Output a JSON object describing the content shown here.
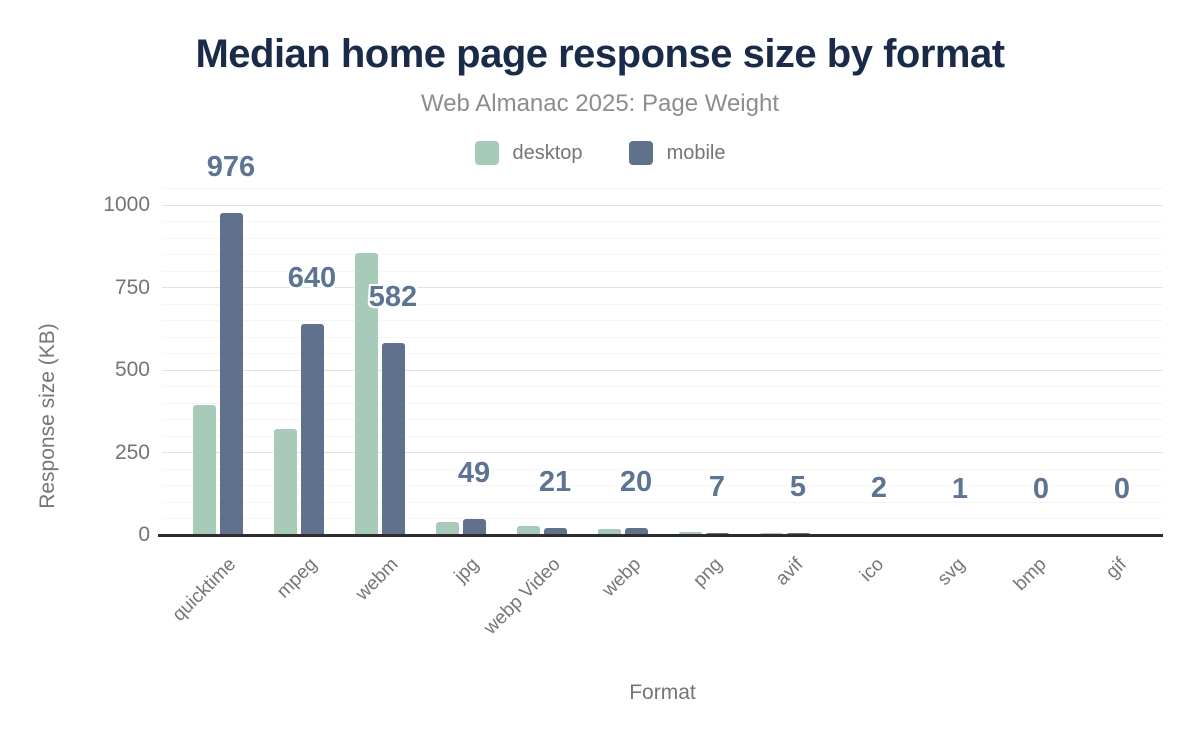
{
  "page": {
    "background": "#ffffff"
  },
  "chart_data": {
    "type": "bar",
    "title": "Median home page response size by format",
    "subtitle": "Web Almanac 2025: Page Weight",
    "xlabel": "Format",
    "ylabel": "Response size (KB)",
    "categories": [
      "quicktime",
      "mpeg",
      "webm",
      "jpg",
      "webp Video",
      "webp",
      "png",
      "avif",
      "ico",
      "svg",
      "bmp",
      "gif"
    ],
    "series": [
      {
        "name": "desktop",
        "color": "#a8cab9",
        "values": [
          395,
          321,
          855,
          40,
          28,
          18,
          8,
          6,
          2,
          1,
          0,
          0
        ]
      },
      {
        "name": "mobile",
        "color": "#5f718c",
        "values": [
          976,
          640,
          582,
          49,
          21,
          20,
          7,
          5,
          2,
          1,
          0,
          0
        ]
      }
    ],
    "value_labels": {
      "series": "mobile",
      "values": [
        "976",
        "640",
        "582",
        "49",
        "21",
        "20",
        "7",
        "5",
        "2",
        "1",
        "0",
        "0"
      ]
    },
    "ylim": [
      0,
      1000
    ],
    "yticks": [
      "0",
      "250",
      "500",
      "750",
      "1000"
    ],
    "minor_grid_step": 50,
    "grid": "horizontal only",
    "legend_position": "top center",
    "colors": {
      "title": "#1a2b49",
      "subtitle": "#8d8d8d",
      "value_label": "#5d7493",
      "axis_text": "#757575",
      "grid_major": "#e3e3e3",
      "grid_minor": "#f5f5f5",
      "axis_line": "#2d2d2d",
      "desktop": "#a8cab9",
      "mobile": "#5f718c"
    }
  }
}
